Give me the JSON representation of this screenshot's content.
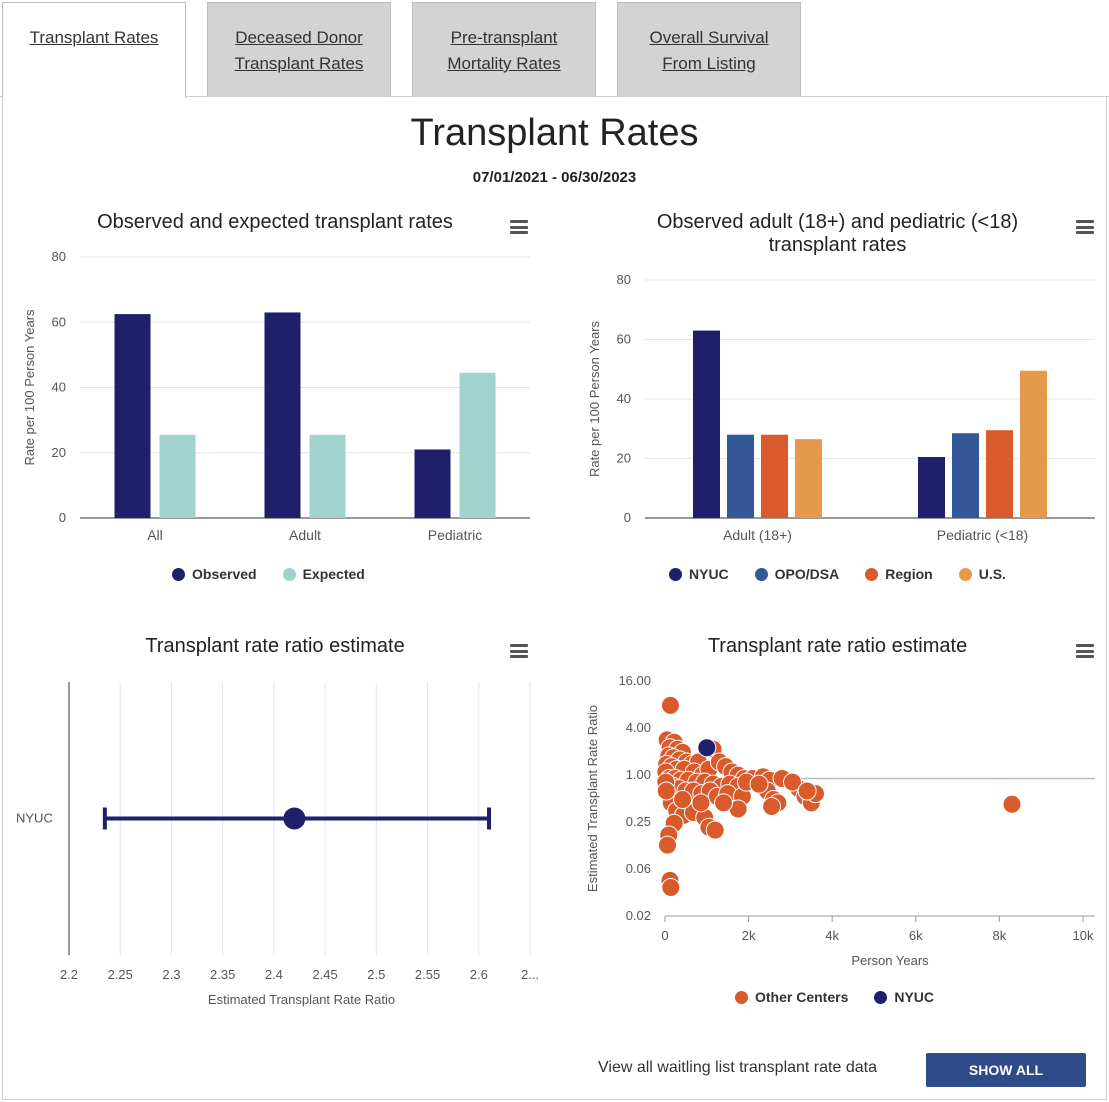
{
  "tabs": [
    {
      "line1": "Transplant Rates",
      "line2": ""
    },
    {
      "line1": "Deceased Donor",
      "line2": "Transplant Rates"
    },
    {
      "line1": "Pre-transplant",
      "line2": "Mortality Rates"
    },
    {
      "line1": "Overall Survival",
      "line2": "From Listing"
    }
  ],
  "page": {
    "title": "Transplant Rates",
    "date_range": "07/01/2021 - 06/30/2023"
  },
  "footer": {
    "text": "View all waitling list transplant rate data",
    "button_label": "SHOW ALL"
  },
  "icons": {
    "chart_menu": "hamburger-menu-icon"
  },
  "chart_data": [
    {
      "type": "bar",
      "title": "Observed and expected transplant rates",
      "xlabel": "",
      "ylabel": "Rate per 100 Person Years",
      "ylim": [
        0,
        80
      ],
      "yticks": [
        "0",
        "20",
        "40",
        "60",
        "80"
      ],
      "grid": true,
      "legend": "bottom",
      "categories": [
        "All",
        "Adult",
        "Pediatric"
      ],
      "series": [
        {
          "name": "Observed",
          "color": "#1f1f6b",
          "values": [
            62.5,
            63,
            21
          ]
        },
        {
          "name": "Expected",
          "color": "#9fd3cb",
          "values": [
            25.5,
            25.5,
            44.5
          ]
        }
      ]
    },
    {
      "type": "bar",
      "title": "Observed adult (18+) and pediatric (<18) transplant rates",
      "xlabel": "",
      "ylabel": "Rate per 100 Person Years",
      "ylim": [
        0,
        80
      ],
      "yticks": [
        "0",
        "20",
        "40",
        "60",
        "80"
      ],
      "grid": true,
      "legend": "bottom",
      "categories": [
        "Adult (18+)",
        "Pediatric (<18)"
      ],
      "series": [
        {
          "name": "NYUC",
          "color": "#1f1f6b",
          "values": [
            63,
            20.5
          ]
        },
        {
          "name": "OPO/DSA",
          "color": "#34579a",
          "values": [
            28,
            28.5
          ]
        },
        {
          "name": "Region",
          "color": "#d95a2b",
          "values": [
            28,
            29.5
          ]
        },
        {
          "name": "U.S.",
          "color": "#e59a4b",
          "values": [
            26.5,
            49.5
          ]
        }
      ]
    },
    {
      "type": "scatter",
      "title": "Transplant rate ratio estimate",
      "xlabel": "Estimated Transplant Rate Ratio",
      "ylabel": "",
      "xlim": [
        2.2,
        2.65
      ],
      "xticks": [
        "2.2",
        "2.25",
        "2.3",
        "2.35",
        "2.4",
        "2.45",
        "2.5",
        "2.55",
        "2.6",
        "2..."
      ],
      "grid": true,
      "categories": [
        "NYUC"
      ],
      "series": [
        {
          "name": "NYUC",
          "color": "#1f1f6b",
          "estimate": 2.42,
          "lower": 2.235,
          "upper": 2.61
        }
      ]
    },
    {
      "type": "scatter",
      "title": "Transplant rate ratio estimate",
      "xlabel": "Person Years",
      "ylabel": "Estimated Transplant Rate Ratio",
      "xlim": [
        0,
        10000
      ],
      "xticks": [
        "0",
        "2k",
        "4k",
        "6k",
        "8k",
        "10k"
      ],
      "ylim": [
        0.02,
        16
      ],
      "yscale": "log",
      "yticks": [
        "0.02",
        "0.06",
        "0.25",
        "1.00",
        "4.00",
        "16.00"
      ],
      "reference_line": 1.0,
      "legend": "bottom",
      "series": [
        {
          "name": "Other Centers",
          "color": "#d95a2b",
          "points": [
            [
              130,
              8.0
            ],
            [
              50,
              3.0
            ],
            [
              220,
              2.8
            ],
            [
              120,
              2.4
            ],
            [
              300,
              2.3
            ],
            [
              420,
              2.1
            ],
            [
              90,
              1.9
            ],
            [
              200,
              1.8
            ],
            [
              350,
              1.7
            ],
            [
              520,
              1.6
            ],
            [
              650,
              1.5
            ],
            [
              800,
              1.6
            ],
            [
              40,
              1.5
            ],
            [
              160,
              1.4
            ],
            [
              280,
              1.3
            ],
            [
              460,
              1.3
            ],
            [
              700,
              1.2
            ],
            [
              900,
              1.1
            ],
            [
              1050,
              1.3
            ],
            [
              1150,
              2.3
            ],
            [
              1300,
              1.6
            ],
            [
              1450,
              1.4
            ],
            [
              1600,
              1.2
            ],
            [
              1750,
              1.1
            ],
            [
              1900,
              1.0
            ],
            [
              2100,
              1.0
            ],
            [
              2350,
              1.05
            ],
            [
              2500,
              0.95
            ],
            [
              2800,
              1.0
            ],
            [
              20,
              1.2
            ],
            [
              100,
              1.0
            ],
            [
              240,
              1.0
            ],
            [
              380,
              0.95
            ],
            [
              560,
              0.95
            ],
            [
              760,
              0.9
            ],
            [
              950,
              0.9
            ],
            [
              1150,
              0.85
            ],
            [
              1350,
              0.8
            ],
            [
              1550,
              0.85
            ],
            [
              1750,
              0.8
            ],
            [
              60,
              0.85
            ],
            [
              190,
              0.8
            ],
            [
              330,
              0.75
            ],
            [
              500,
              0.7
            ],
            [
              680,
              0.7
            ],
            [
              880,
              0.65
            ],
            [
              1080,
              0.7
            ],
            [
              1250,
              0.6
            ],
            [
              1500,
              0.65
            ],
            [
              1850,
              0.6
            ],
            [
              2450,
              0.7
            ],
            [
              2600,
              0.55
            ],
            [
              2700,
              0.5
            ],
            [
              3200,
              0.75
            ],
            [
              3350,
              0.6
            ],
            [
              3500,
              0.5
            ],
            [
              3600,
              0.65
            ],
            [
              2550,
              0.45
            ],
            [
              1750,
              0.42
            ],
            [
              20,
              0.9
            ],
            [
              150,
              0.5
            ],
            [
              280,
              0.4
            ],
            [
              440,
              0.35
            ],
            [
              680,
              0.38
            ],
            [
              950,
              0.33
            ],
            [
              220,
              0.28
            ],
            [
              1050,
              0.25
            ],
            [
              1200,
              0.23
            ],
            [
              90,
              0.2
            ],
            [
              60,
              0.15
            ],
            [
              120,
              0.055
            ],
            [
              140,
              0.045
            ],
            [
              8300,
              0.48
            ],
            [
              30,
              0.7
            ],
            [
              420,
              0.55
            ],
            [
              860,
              0.5
            ],
            [
              1400,
              0.5
            ],
            [
              1950,
              0.9
            ],
            [
              2250,
              0.85
            ],
            [
              3050,
              0.9
            ],
            [
              3400,
              0.7
            ]
          ]
        },
        {
          "name": "NYUC",
          "color": "#1f1f6b",
          "points": [
            [
              1000,
              2.4
            ]
          ]
        }
      ]
    }
  ]
}
